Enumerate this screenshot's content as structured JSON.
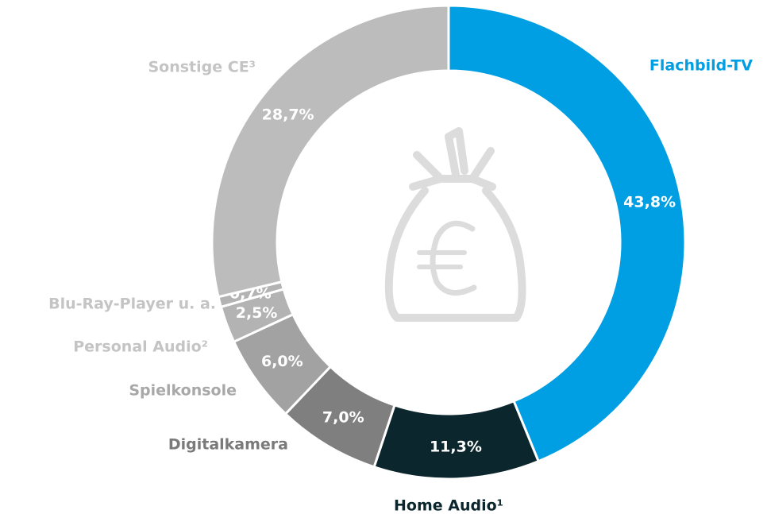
{
  "chart_data": {
    "type": "donut",
    "categories": [
      "Flachbild-TV",
      "Home Audio¹",
      "Digitalkamera",
      "Spielkonsole",
      "Personal Audio²",
      "Blu-Ray-Player u. a.",
      "Sonstige CE³"
    ],
    "values": [
      43.8,
      11.3,
      7.0,
      6.0,
      2.5,
      0.7,
      28.7
    ],
    "value_labels": [
      "43,8%",
      "11,3%",
      "7,0%",
      "6,0%",
      "2,5%",
      "0,7%",
      "28,7%"
    ],
    "colors": [
      "#009fe3",
      "#0c262d",
      "#7f7f7f",
      "#a2a2a2",
      "#b3b3b3",
      "#b3b3b3",
      "#bcbcbc"
    ],
    "label_colors": [
      "#009fe3",
      "#0c262d",
      "#7a7a7a",
      "#a8a8a8",
      "#c4c4c4",
      "#c4c4c4",
      "#c4c4c4"
    ]
  }
}
